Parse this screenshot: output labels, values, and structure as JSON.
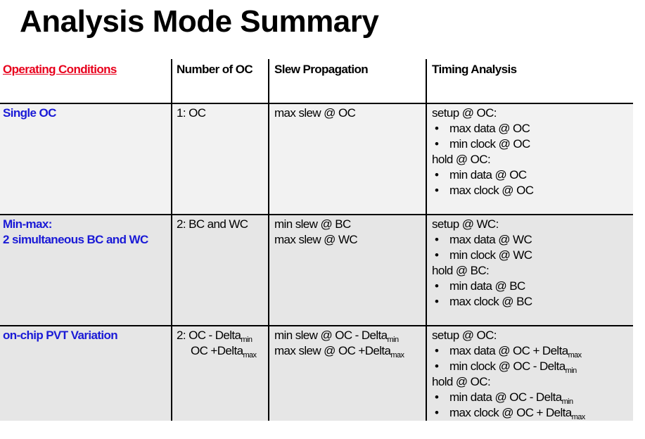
{
  "title": "Analysis Mode Summary",
  "headers": {
    "operating_conditions": "Operating Conditions",
    "number_of_oc": "Number of OC",
    "slew_propagation": "Slew Propagation",
    "timing_analysis": "Timing Analysis"
  },
  "rows": [
    {
      "label_lines": [
        "Single OC"
      ],
      "number_of_oc": "1: OC",
      "slew_lines": [
        "max slew @ OC"
      ],
      "setup_label": "setup @ OC:",
      "setup_items": [
        "max data @ OC",
        "min clock @ OC"
      ],
      "hold_label": "hold @ OC:",
      "hold_items": [
        "min data @ OC",
        "max clock @ OC"
      ]
    },
    {
      "label_lines": [
        "Min-max:",
        "2 simultaneous BC and WC"
      ],
      "number_of_oc": "2: BC and WC",
      "slew_lines": [
        "min slew @ BC",
        "max slew @ WC"
      ],
      "setup_label": "setup @ WC:",
      "setup_items": [
        "max data @ WC",
        "min clock @ WC"
      ],
      "hold_label": "hold @ BC:",
      "hold_items": [
        "min data @ BC",
        "max clock @ BC"
      ]
    },
    {
      "label_lines": [
        "on-chip PVT Variation"
      ],
      "number_of_oc_line1": "2: OC - Delta",
      "number_of_oc_line1_sub": "min",
      "number_of_oc_line2": "OC +Delta",
      "number_of_oc_line2_sub": "max",
      "slew_line1": "min slew @ OC - Delta",
      "slew_line1_sub": "min",
      "slew_line2": "max slew @ OC +Delta",
      "slew_line2_sub": "max",
      "setup_label": "setup @ OC:",
      "setup_items": [
        {
          "text": "max data @ OC + Delta",
          "sub": "max"
        },
        {
          "text": "min clock @ OC - Delta",
          "sub": "min"
        }
      ],
      "hold_label": "hold @ OC:",
      "hold_items": [
        {
          "text": "min data @ OC - Delta",
          "sub": "min"
        },
        {
          "text": "max clock @ OC + Delta",
          "sub": "max"
        }
      ]
    }
  ]
}
